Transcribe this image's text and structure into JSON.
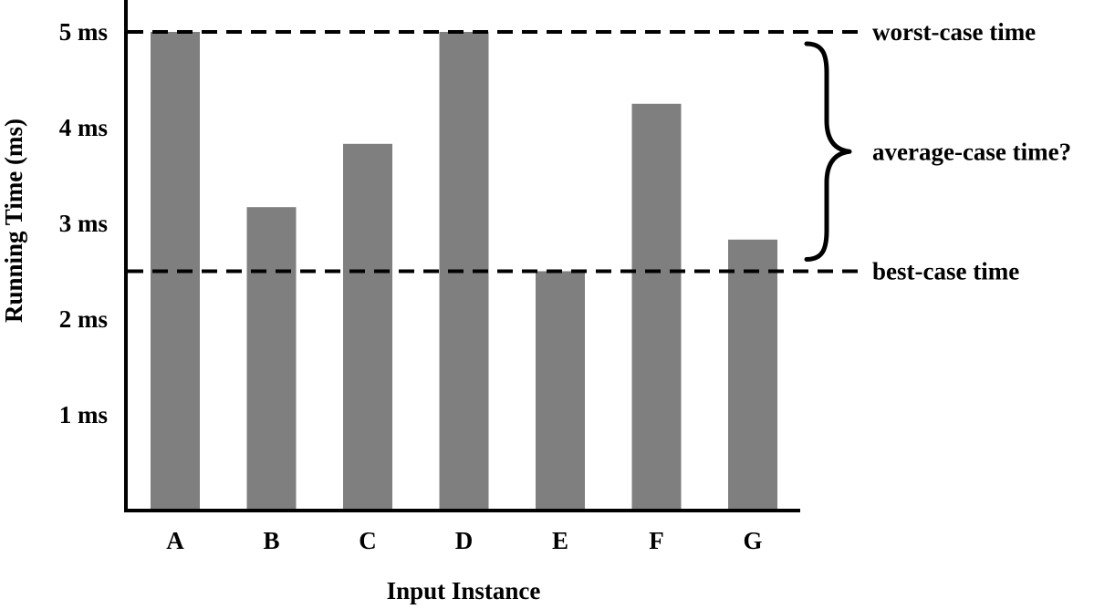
{
  "chart_data": {
    "type": "bar",
    "categories": [
      "A",
      "B",
      "C",
      "D",
      "E",
      "F",
      "G"
    ],
    "values": [
      5.0,
      3.17,
      3.83,
      5.0,
      2.5,
      4.25,
      2.83
    ],
    "xlabel": "Input Instance",
    "ylabel": "Running Time (ms)",
    "ylim": [
      0,
      5.3
    ],
    "yticks": [
      1,
      2,
      3,
      4,
      5
    ],
    "ytick_labels": [
      "1 ms",
      "2 ms",
      "3 ms",
      "4 ms",
      "5 ms"
    ],
    "grid": false,
    "bar_color": "#7f7f7f",
    "reference_lines": [
      {
        "value": 5.0,
        "label": "worst-case time",
        "style": "dashed"
      },
      {
        "value": 2.5,
        "label": "best-case time",
        "style": "dashed"
      }
    ],
    "brace_annotation": {
      "from": 2.5,
      "to": 5.0,
      "label": "average-case time?"
    }
  }
}
